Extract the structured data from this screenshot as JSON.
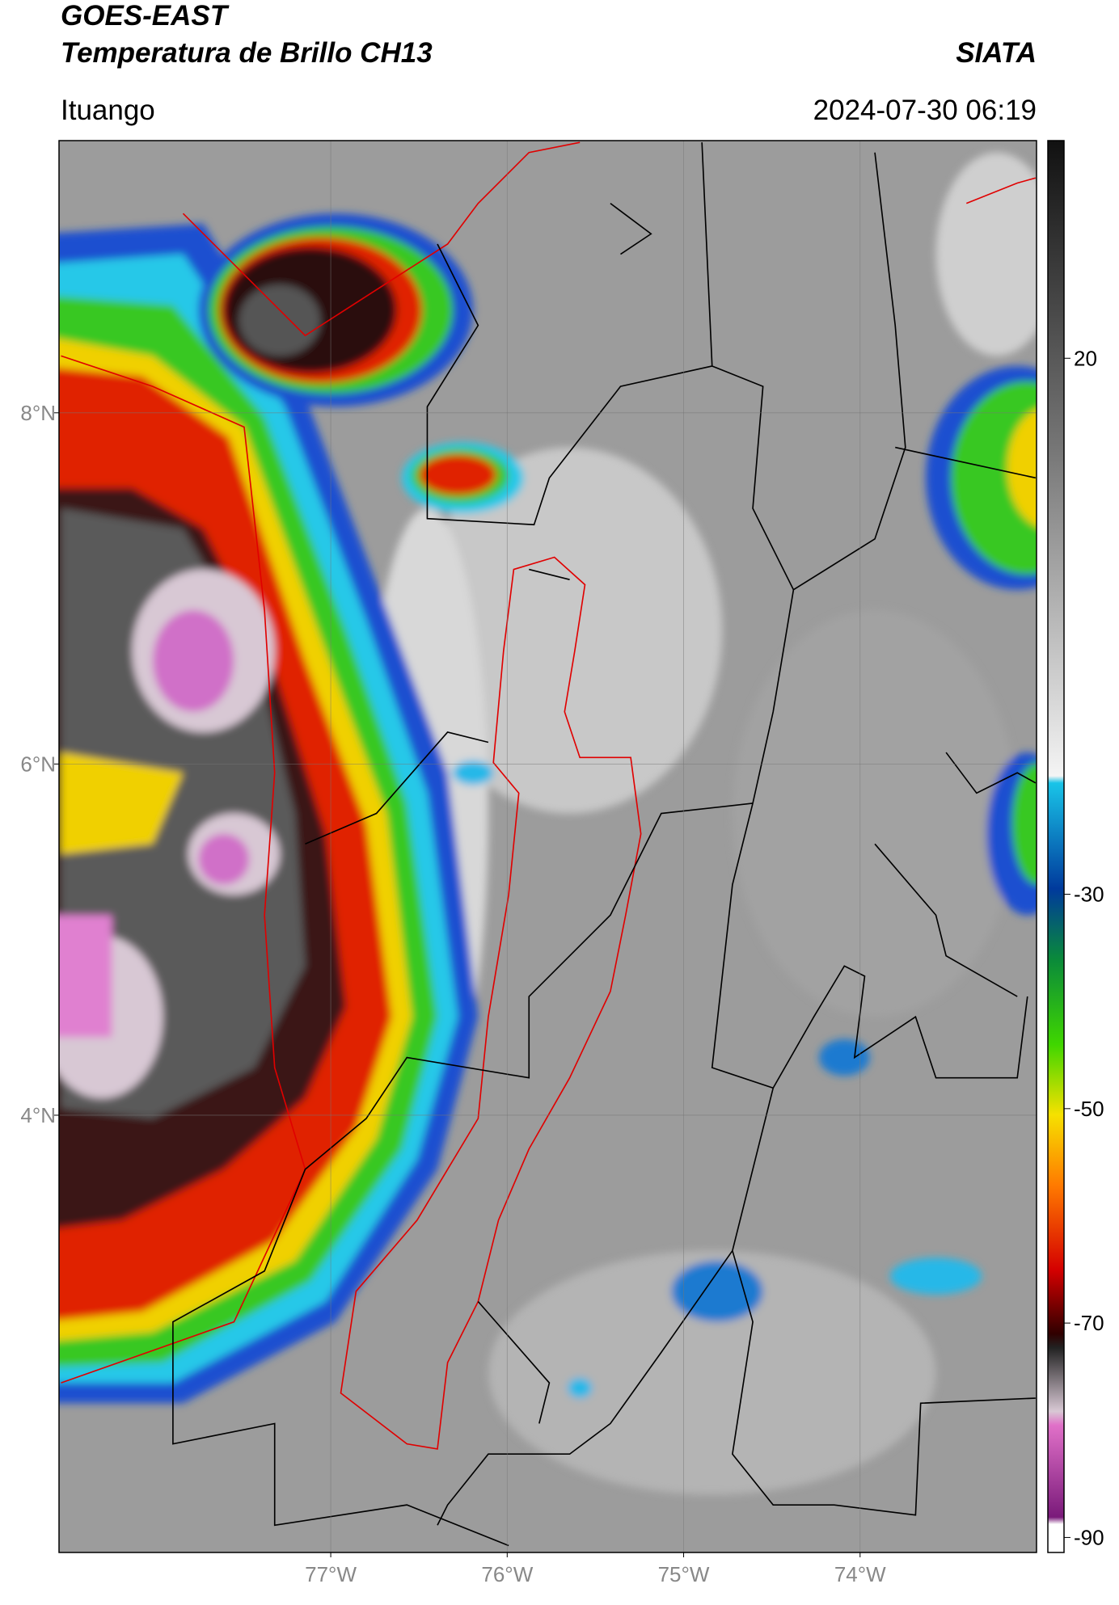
{
  "chart_data": {
    "type": "map",
    "title": "GOES-EAST",
    "subtitle": "Temperatura de Brillo CH13",
    "brand": "SIATA",
    "location": "Ituango",
    "timestamp": "2024-07-30 06:19",
    "xlim": [
      -78.54,
      -73.0
    ],
    "ylim": [
      1.51,
      9.55
    ],
    "xticks": [
      {
        "value": -77,
        "label": "77°W"
      },
      {
        "value": -76,
        "label": "76°W"
      },
      {
        "value": -75,
        "label": "75°W"
      },
      {
        "value": -74,
        "label": "74°W"
      }
    ],
    "yticks": [
      {
        "value": 8,
        "label": "8°N"
      },
      {
        "value": 6,
        "label": "6°N"
      },
      {
        "value": 4,
        "label": "4°N"
      }
    ],
    "grid": true,
    "colorbar": {
      "lim": [
        -91.4,
        40.3
      ],
      "ticks": [
        20,
        -30,
        -50,
        -70,
        -90
      ]
    }
  }
}
